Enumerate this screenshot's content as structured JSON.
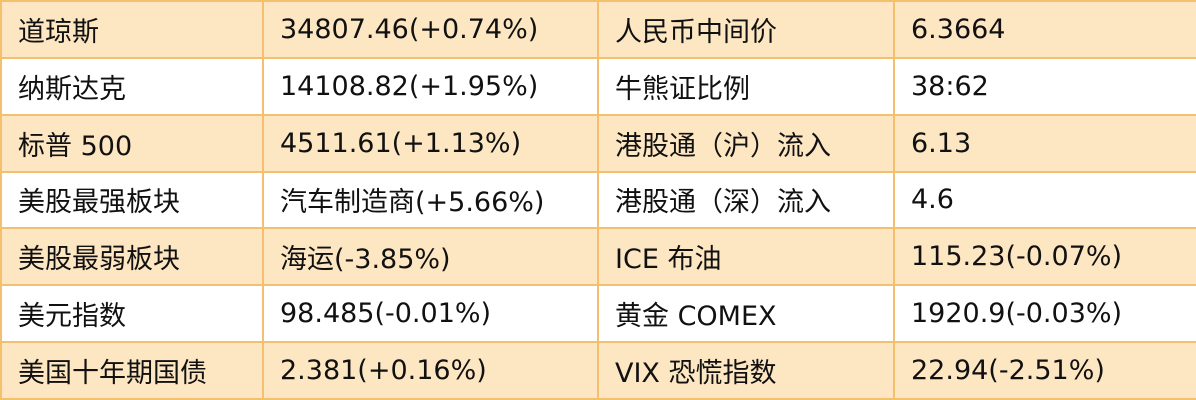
{
  "table": {
    "rows": [
      [
        "道琼斯",
        "34807.46(+0.74%)",
        "人民币中间价",
        "6.3664"
      ],
      [
        "纳斯达克",
        "14108.82(+1.95%)",
        "牛熊证比例",
        "38:62"
      ],
      [
        "标普 500",
        "4511.61(+1.13%)",
        "港股通（沪）流入",
        "6.13"
      ],
      [
        "美股最强板块",
        "汽车制造商(+5.66%)",
        "港股通（深）流入",
        "4.6"
      ],
      [
        "美股最弱板块",
        "海运(-3.85%)",
        "ICE 布油",
        "115.23(-0.07%)"
      ],
      [
        "美元指数",
        "98.485(-0.01%)",
        "黄金 COMEX",
        "1920.9(-0.03%)"
      ],
      [
        "美国十年期国债",
        "2.381(+0.16%)",
        "VIX 恐慌指数",
        "22.94(-2.51%)"
      ]
    ]
  }
}
